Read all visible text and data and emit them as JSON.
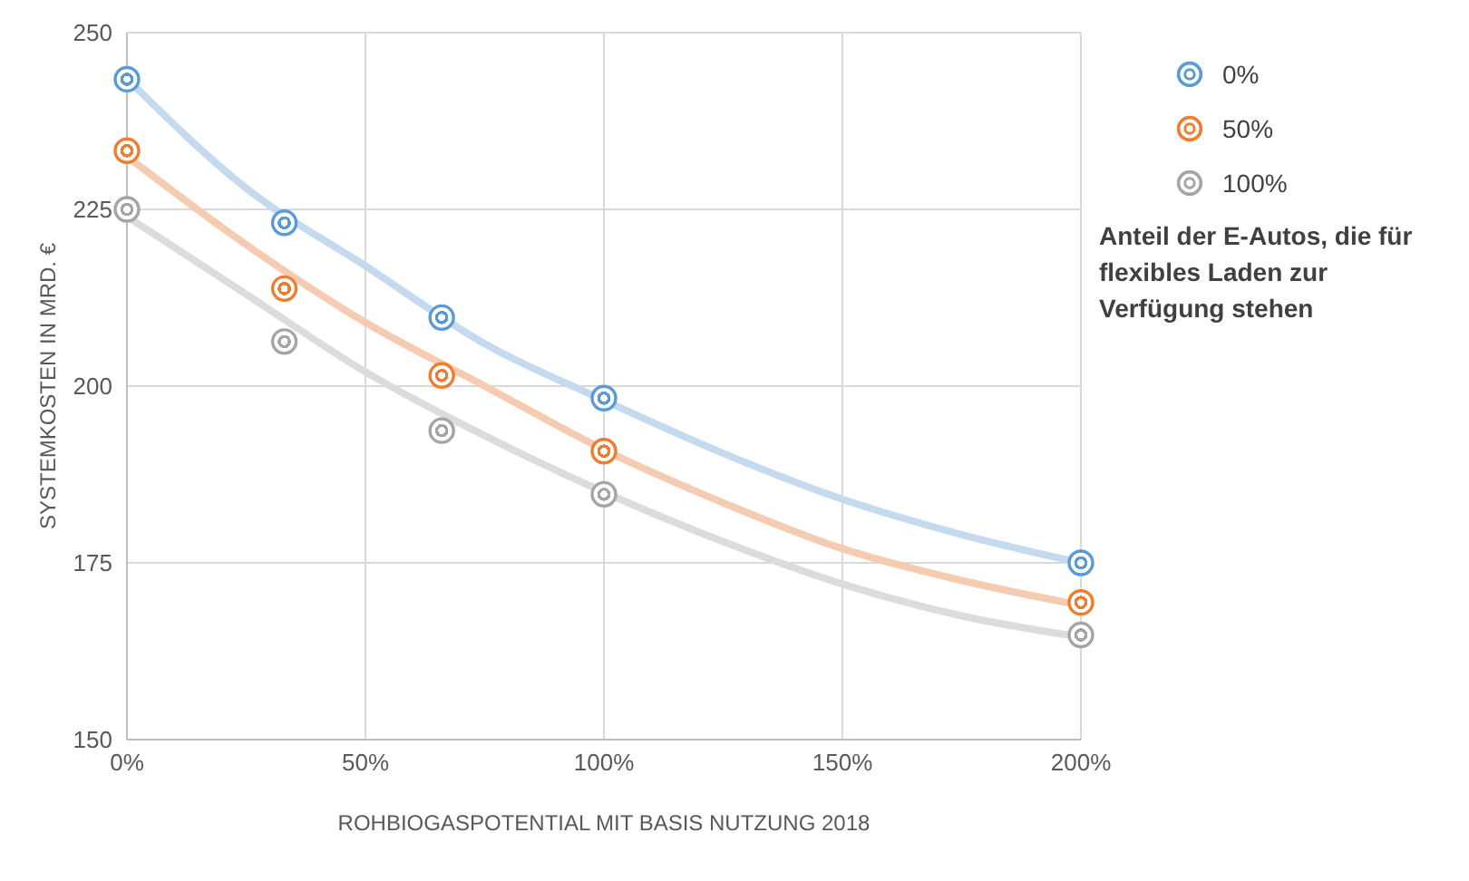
{
  "chart_data": {
    "type": "scatter",
    "xlabel": "ROHBIOGASPOTENTIAL MIT BASIS NUTZUNG 2018",
    "ylabel": "SYSTEMKOSTEN IN MRD. €",
    "legend_title": "Anteil der E-Autos, die für flexibles Laden zur Verfügung stehen",
    "legend": "top right",
    "grid": true,
    "marker": "circle",
    "xlim": [
      0,
      200
    ],
    "xticks": [
      {
        "value": 0,
        "label": "0%"
      },
      {
        "value": 50,
        "label": "50%"
      },
      {
        "value": 100,
        "label": "100%"
      },
      {
        "value": 150,
        "label": "150%"
      },
      {
        "value": 200,
        "label": "200%"
      }
    ],
    "ylim": [
      150,
      250
    ],
    "yticks": [
      150,
      175,
      200,
      225,
      250
    ],
    "x": [
      0,
      33,
      66,
      100,
      200
    ],
    "series": [
      {
        "type": "line",
        "marker": "none",
        "color": "#c5d9ef",
        "x": [
          0,
          25,
          50,
          75,
          100,
          125,
          150,
          175,
          200
        ],
        "values": [
          243.5,
          228,
          217,
          206,
          198,
          190.5,
          184,
          179,
          175
        ]
      },
      {
        "type": "line",
        "marker": "none",
        "color": "#f5ccb2",
        "x": [
          0,
          25,
          50,
          75,
          100,
          125,
          150,
          175,
          200
        ],
        "values": [
          232.5,
          220,
          209,
          200,
          191,
          183.5,
          177,
          172.5,
          169
        ]
      },
      {
        "type": "line",
        "marker": "none",
        "color": "#dcdcdc",
        "x": [
          0,
          25,
          50,
          75,
          100,
          125,
          150,
          175,
          200
        ],
        "values": [
          224,
          213,
          202,
          193,
          185,
          178,
          172,
          167.5,
          164.5
        ]
      },
      {
        "name": "0%",
        "color": "#5b9bd5",
        "values": [
          243.4,
          223.1,
          209.7,
          198.3,
          175.0
        ]
      },
      {
        "name": "50%",
        "color": "#ed7d31",
        "values": [
          233.3,
          213.8,
          201.5,
          190.8,
          169.4
        ]
      },
      {
        "name": "100%",
        "color": "#a5a5a5",
        "values": [
          225.0,
          206.3,
          193.7,
          184.7,
          164.8
        ]
      }
    ]
  }
}
